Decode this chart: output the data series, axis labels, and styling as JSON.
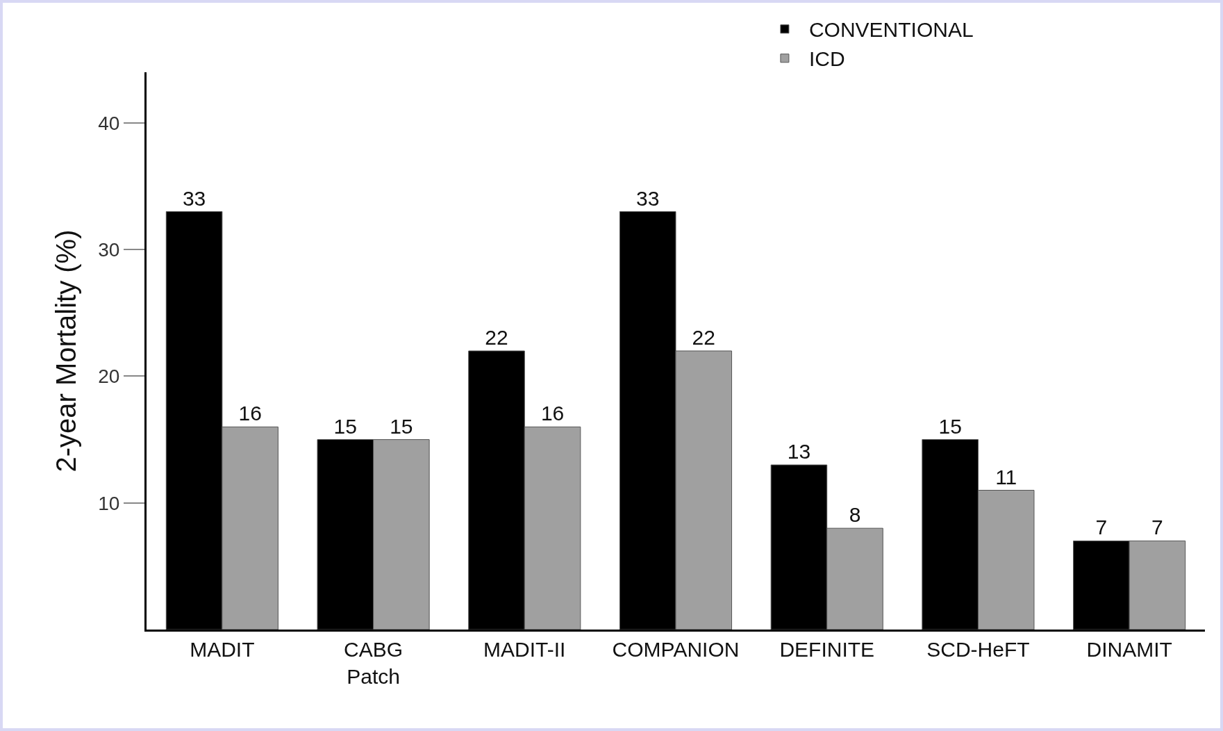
{
  "chart_data": {
    "type": "bar",
    "ylabel": "2-year Mortality (%)",
    "categories": [
      "MADIT",
      "CABG\nPatch",
      "MADIT-II",
      "COMPANION",
      "DEFINITE",
      "SCD-HeFT",
      "DINAMIT"
    ],
    "series": [
      {
        "name": "CONVENTIONAL",
        "color": "#000000",
        "values": [
          33,
          15,
          22,
          33,
          13,
          15,
          7
        ]
      },
      {
        "name": "ICD",
        "color": "#a0a0a0",
        "values": [
          16,
          15,
          16,
          22,
          8,
          11,
          7
        ]
      }
    ],
    "ylim": [
      0,
      44
    ],
    "yticks": [
      10,
      20,
      30,
      40
    ],
    "data_labels": true,
    "grid": false,
    "legend": "top right"
  }
}
